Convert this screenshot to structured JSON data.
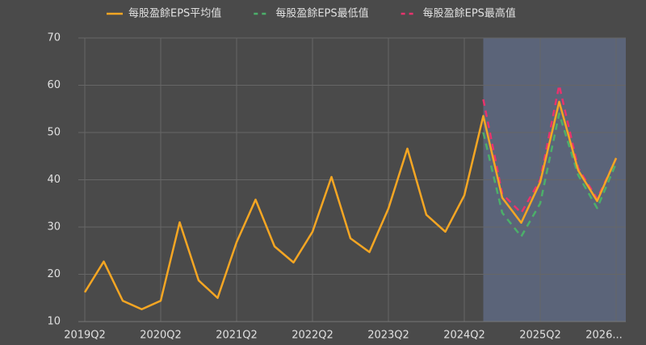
{
  "chart_data": {
    "type": "line",
    "categories": [
      "2019Q2",
      null,
      null,
      null,
      "2020Q2",
      null,
      null,
      null,
      "2021Q2",
      null,
      null,
      null,
      "2022Q2",
      null,
      null,
      null,
      "2023Q2",
      null,
      null,
      null,
      "2024Q2",
      null,
      null,
      null,
      "2025Q2",
      null,
      null,
      null,
      "2026..."
    ],
    "series": [
      {
        "name": "每股盈餘EPS平均值",
        "color": "#f5a623",
        "dash": false,
        "values": [
          16.2,
          22.7,
          14.4,
          12.6,
          14.4,
          31.0,
          18.7,
          15.0,
          26.8,
          35.8,
          25.9,
          22.5,
          29.0,
          40.6,
          27.6,
          24.7,
          33.9,
          46.6,
          32.6,
          29.0,
          36.7,
          53.5,
          36.2,
          30.9,
          39.5,
          56.5,
          42.0,
          35.5,
          44.6
        ]
      },
      {
        "name": "每股盈餘EPS最低值",
        "color": "#4caf6a",
        "dash": true,
        "values": [
          null,
          null,
          null,
          null,
          null,
          null,
          null,
          null,
          null,
          null,
          null,
          null,
          null,
          null,
          null,
          null,
          null,
          null,
          null,
          null,
          null,
          50.0,
          33.0,
          28.0,
          35.0,
          54.0,
          41.0,
          34.0,
          43.5
        ]
      },
      {
        "name": "每股盈餘EPS最高值",
        "color": "#e8336d",
        "dash": true,
        "values": [
          null,
          null,
          null,
          null,
          null,
          null,
          null,
          null,
          null,
          null,
          null,
          null,
          null,
          null,
          null,
          null,
          null,
          null,
          null,
          null,
          null,
          57.0,
          37.0,
          33.0,
          40.0,
          60.0,
          42.5,
          36.0,
          44.5
        ]
      }
    ],
    "ylim": [
      10,
      70
    ],
    "yticks": [
      10,
      20,
      30,
      40,
      50,
      60,
      70
    ],
    "grid": true
  }
}
